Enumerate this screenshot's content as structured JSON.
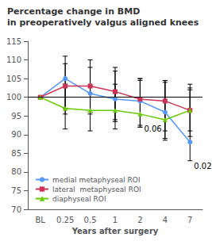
{
  "chart_data": {
    "type": "line",
    "title": "Percentage change in BMD",
    "subtitle": "in preoperatively valgus aligned knees",
    "xlabel": "Years after surgery",
    "categories": [
      "BL",
      "0.25",
      "0.5",
      "1",
      "2",
      "4",
      "7"
    ],
    "series": [
      {
        "name": "medial metaphyseal ROI",
        "color": "#5599ff",
        "marker": "circle",
        "values": [
          100,
          105.0,
          101.0,
          99.5,
          99.0,
          96.0,
          88.0
        ],
        "ci_low": [
          100,
          97.0,
          95.5,
          93.5,
          92.0,
          89.0,
          83.0
        ],
        "ci_high": [
          100,
          111.0,
          108.0,
          107.0,
          105.0,
          104.0,
          102.0
        ]
      },
      {
        "name": "lateral  metaphyseal ROI",
        "color": "#cc3355",
        "marker": "square",
        "values": [
          100,
          103.0,
          103.0,
          101.5,
          99.5,
          99.0,
          96.5
        ],
        "ci_low": [
          100,
          95.5,
          96.0,
          94.0,
          92.5,
          91.0,
          89.5
        ],
        "ci_high": [
          100,
          109.0,
          110.0,
          108.0,
          105.0,
          104.5,
          103.5
        ]
      },
      {
        "name": "diaphyseal ROI",
        "color": "#66cc00",
        "marker": "triangle",
        "values": [
          100,
          97.0,
          96.5,
          96.5,
          95.5,
          94.0,
          96.5
        ],
        "ci_low": [
          100,
          91.5,
          91.0,
          91.5,
          92.0,
          88.5,
          91.0
        ],
        "ci_high": [
          100,
          103.5,
          103.0,
          103.5,
          104.5,
          104.5,
          102.5
        ]
      }
    ],
    "hline": 100,
    "annotations": [
      {
        "x": "2",
        "y": 91.5,
        "text": "0.06"
      },
      {
        "x": "7",
        "y": 81.5,
        "text": "0.02"
      }
    ],
    "ylim": [
      70,
      115
    ],
    "yticks": [
      70,
      75,
      80,
      85,
      90,
      95,
      100,
      105,
      110,
      115
    ],
    "grid": false,
    "legend": "lower left"
  }
}
